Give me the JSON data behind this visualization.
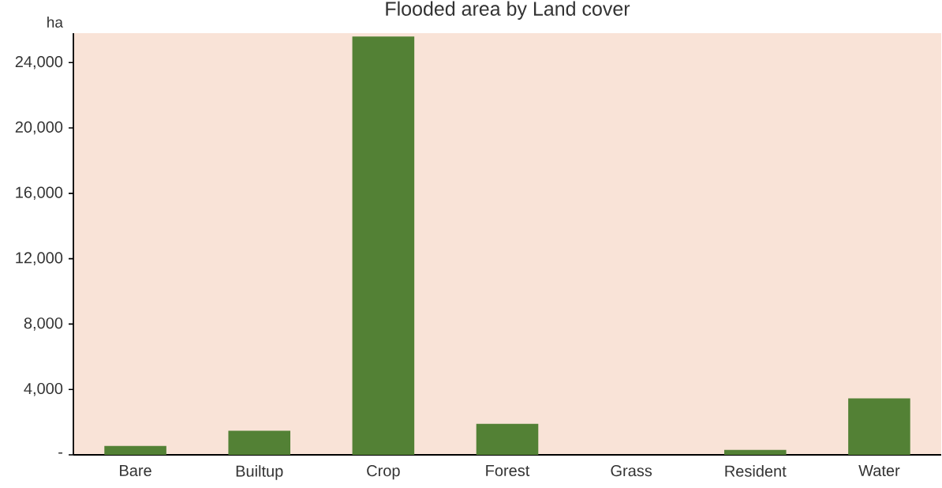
{
  "chart_data": {
    "type": "bar",
    "title": "Flooded area by Land cover",
    "ylabel": "ha",
    "categories": [
      "Bare",
      "Builtup",
      "Crop",
      "Forest",
      "Grass",
      "Resident",
      "Water"
    ],
    "values": [
      540,
      1470,
      25600,
      1900,
      0,
      300,
      3450
    ],
    "color": "#538135",
    "ylim": [
      0,
      25800
    ],
    "yticks": [
      {
        "value": 0,
        "label": "-"
      },
      {
        "value": 4000,
        "label": "4,000"
      },
      {
        "value": 8000,
        "label": "8,000"
      },
      {
        "value": 12000,
        "label": "12,000"
      },
      {
        "value": 16000,
        "label": "16,000"
      },
      {
        "value": 20000,
        "label": "20,000"
      },
      {
        "value": 24000,
        "label": "24,000"
      }
    ]
  }
}
